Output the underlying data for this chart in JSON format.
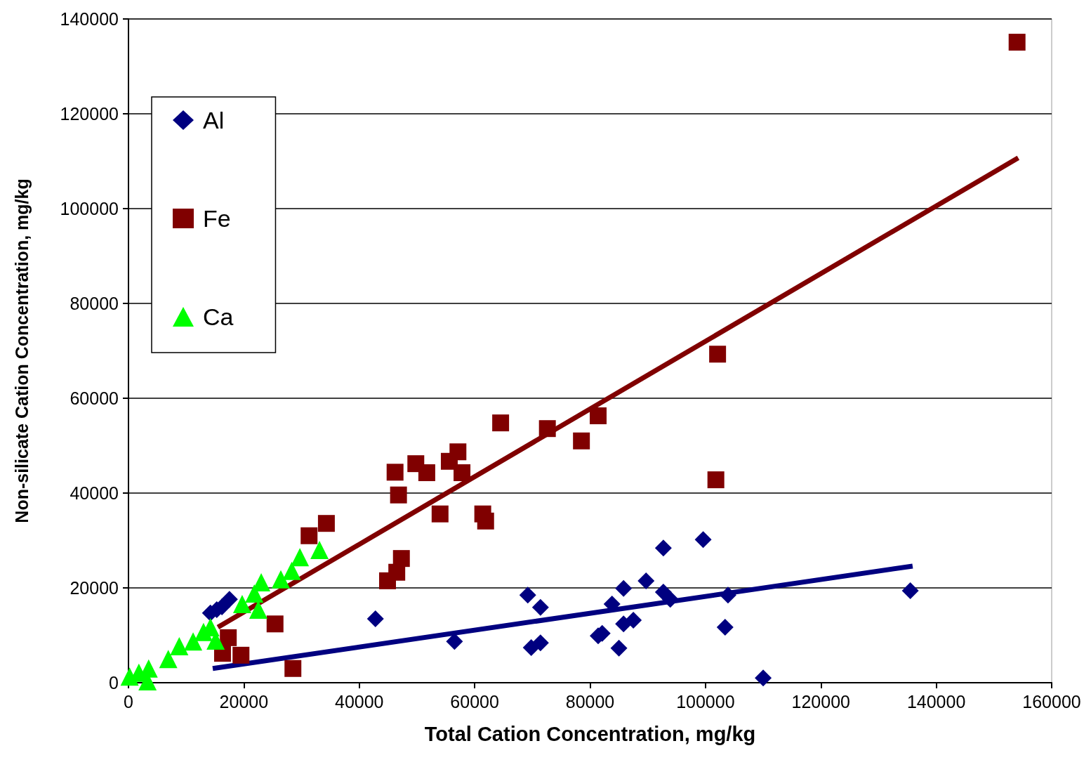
{
  "chart_data": {
    "type": "scatter",
    "xlabel": "Total Cation Concentration, mg/kg",
    "ylabel": "Non-silicate Cation Concentration, mg/kg",
    "xlim": [
      0,
      160000
    ],
    "xticks": [
      0,
      20000,
      40000,
      60000,
      80000,
      100000,
      120000,
      140000,
      160000
    ],
    "ylim": [
      0,
      140000
    ],
    "yticks": [
      0,
      20000,
      40000,
      60000,
      80000,
      100000,
      120000,
      140000
    ],
    "grid": "y",
    "legend": "top left",
    "series": [
      {
        "name": "Al",
        "marker": "diamond",
        "color": "#000080",
        "x": [
          14200,
          15300,
          16200,
          17500,
          42800,
          56500,
          69200,
          71400,
          69800,
          71400,
          81400,
          82100,
          83800,
          85800,
          85800,
          87500,
          85000,
          89700,
          92700,
          92700,
          93900,
          99600,
          103900,
          103400,
          110000,
          135500
        ],
        "values": [
          14700,
          15400,
          16000,
          17600,
          13500,
          8700,
          18500,
          15900,
          7400,
          8400,
          9900,
          10400,
          16600,
          19900,
          12400,
          13200,
          7300,
          21500,
          28400,
          19100,
          17600,
          30200,
          18500,
          11700,
          1000,
          19400
        ]
      },
      {
        "name": "Fe",
        "marker": "square",
        "color": "#800000",
        "x": [
          16300,
          17300,
          19500,
          25400,
          28500,
          31300,
          34300,
          44900,
          46500,
          47300,
          46800,
          46200,
          49800,
          51700,
          54000,
          55600,
          57100,
          57800,
          61400,
          61900,
          64500,
          72600,
          78500,
          81400,
          101800,
          102100,
          154000
        ],
        "values": [
          6200,
          9500,
          5800,
          12400,
          3000,
          31000,
          33600,
          21500,
          23300,
          26200,
          39600,
          44400,
          46200,
          44300,
          35600,
          46700,
          48700,
          44300,
          35600,
          34100,
          54800,
          53600,
          51000,
          56300,
          42800,
          69300,
          135100
        ]
      },
      {
        "name": "Ca",
        "marker": "triangle",
        "color": "#00ff00",
        "x": [
          200,
          1800,
          3300,
          3500,
          6900,
          8800,
          11200,
          13000,
          14200,
          15100,
          19700,
          21800,
          23000,
          22500,
          26400,
          28300,
          29700,
          33100
        ],
        "values": [
          1300,
          2100,
          300,
          3000,
          5000,
          7700,
          8700,
          10700,
          11700,
          8900,
          16600,
          18800,
          21200,
          15400,
          21800,
          23600,
          26500,
          28000
        ]
      },
      {
        "type": "line",
        "marker": "none",
        "line_style": "solid",
        "color": "#800000",
        "x": [
          15500,
          154200
        ],
        "values": [
          11700,
          110700
        ]
      },
      {
        "type": "line",
        "marker": "none",
        "line_style": "solid",
        "color": "#000080",
        "x": [
          14600,
          135900
        ],
        "values": [
          3000,
          24600
        ]
      }
    ]
  }
}
